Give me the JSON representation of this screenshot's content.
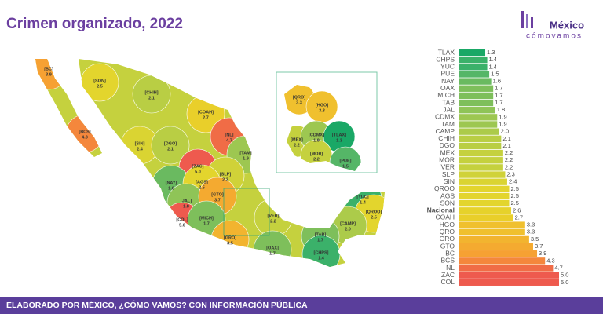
{
  "header": {
    "title": "Crimen organizado, 2022",
    "logo_top": "México",
    "logo_bottom": "cómovamos"
  },
  "footer": "ELABORADO POR MÉXICO, ¿CÓMO VAMOS? CON INFORMACIÓN PÚBLICA",
  "chart_data": {
    "type": "bar",
    "orientation": "horizontal",
    "categories": [
      "TLAX",
      "CHPS",
      "YUC",
      "PUE",
      "NAY",
      "OAX",
      "MICH",
      "TAB",
      "JAL",
      "CDMX",
      "TAM",
      "CAMP",
      "CHIH",
      "DGO",
      "MEX",
      "MOR",
      "VER",
      "SLP",
      "SIN",
      "QROO",
      "AGS",
      "SON",
      "Nacional",
      "COAH",
      "HGO",
      "QRO",
      "GRO",
      "GTO",
      "BC",
      "BCS",
      "NL",
      "ZAC",
      "COL"
    ],
    "values": [
      1.3,
      1.4,
      1.4,
      1.5,
      1.6,
      1.7,
      1.7,
      1.7,
      1.8,
      1.9,
      1.9,
      2.0,
      2.1,
      2.1,
      2.2,
      2.2,
      2.2,
      2.3,
      2.4,
      2.5,
      2.5,
      2.5,
      2.6,
      2.7,
      3.3,
      3.3,
      3.5,
      3.7,
      3.9,
      4.3,
      4.7,
      5.0,
      5.0
    ],
    "value_labels": [
      "1.3",
      "1.4",
      "1.4",
      "1.5",
      "1.6",
      "1.7",
      "1.7",
      "1.7",
      "1.8",
      "1.9",
      "1.9",
      "2.0",
      "2.1",
      "2.1",
      "2.2",
      "2.2",
      "2.2",
      "2.3",
      "2.4",
      "2.5",
      "2.5",
      "2.5",
      "2.6",
      "2.7",
      "3.3",
      "3.3",
      "3.5",
      "3.7",
      "3.9",
      "4.3",
      "4.7",
      "5.0",
      "5.0"
    ],
    "colors": [
      "#1aa866",
      "#3bb16a",
      "#3bb16a",
      "#55b667",
      "#6aba60",
      "#7ebf5b",
      "#7ebf5b",
      "#7ebf5b",
      "#8fc457",
      "#9dc751",
      "#9dc751",
      "#accb4a",
      "#b9ce44",
      "#b9ce44",
      "#c5d13e",
      "#c5d13e",
      "#c5d13e",
      "#d0d238",
      "#dad432",
      "#e3d52d",
      "#e3d52d",
      "#e3d52d",
      "#e6d22b",
      "#e9cf2a",
      "#f0c02e",
      "#f0c02e",
      "#f2b42f",
      "#f4aa30",
      "#f6a133",
      "#f4873c",
      "#f06c46",
      "#ee5a4e",
      "#ee5a4e"
    ],
    "highlight_category": "Nacional",
    "highlight_color": "#e8584f",
    "xlim": [
      0,
      5.0
    ]
  },
  "map": {
    "states": [
      {
        "code": "[BC]",
        "value": "3.9"
      },
      {
        "code": "[SON]",
        "value": "2.5"
      },
      {
        "code": "[CHIH]",
        "value": "2.1"
      },
      {
        "code": "[COAH]",
        "value": "2.7"
      },
      {
        "code": "[NL]",
        "value": "4.7"
      },
      {
        "code": "[BCS]",
        "value": "4.3"
      },
      {
        "code": "[SIN]",
        "value": "2.4"
      },
      {
        "code": "[DGO]",
        "value": "2.1"
      },
      {
        "code": "[TAM]",
        "value": "1.9"
      },
      {
        "code": "[ZAC]",
        "value": "5.0"
      },
      {
        "code": "[SLP]",
        "value": "2.3"
      },
      {
        "code": "[NAY]",
        "value": "1.6"
      },
      {
        "code": "[AGS]",
        "value": "2.5"
      },
      {
        "code": "[JAL]",
        "value": "1.8"
      },
      {
        "code": "[GTO]",
        "value": "3.7"
      },
      {
        "code": "[COL]",
        "value": "5.0"
      },
      {
        "code": "[MICH]",
        "value": "1.7"
      },
      {
        "code": "[VER]",
        "value": "2.2"
      },
      {
        "code": "[GRO]",
        "value": "3.5"
      },
      {
        "code": "[OAX]",
        "value": "1.7"
      },
      {
        "code": "[YUC]",
        "value": "1.4"
      },
      {
        "code": "[QROO]",
        "value": "2.5"
      },
      {
        "code": "[CAMP]",
        "value": "2.0"
      },
      {
        "code": "[TAB]",
        "value": "1.7"
      },
      {
        "code": "[CHPS]",
        "value": "1.4"
      }
    ],
    "inset": [
      {
        "code": "[QRO]",
        "value": "3.3"
      },
      {
        "code": "[HGO]",
        "value": "3.3"
      },
      {
        "code": "[MEX]",
        "value": "2.2"
      },
      {
        "code": "[CDMX]",
        "value": "1.9"
      },
      {
        "code": "[TLAX]",
        "value": "1.3"
      },
      {
        "code": "[MOR]",
        "value": "2.2"
      },
      {
        "code": "[PUE]",
        "value": "1.5"
      }
    ]
  }
}
